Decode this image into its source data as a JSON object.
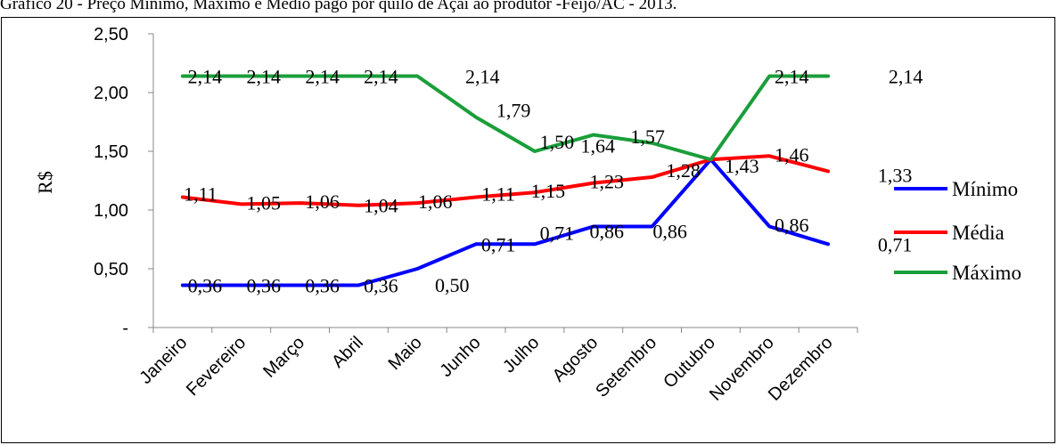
{
  "caption": "Gráfico 20 - Preço Mínimo, Máximo e Médio pago por quilo de Açaí ao produtor -Feijó/AC - 2013.",
  "chart_data": {
    "type": "line",
    "title": "",
    "xlabel": "",
    "ylabel": "R$",
    "ylim": [
      0,
      2.5
    ],
    "y_ticks": [
      "-",
      "0,50",
      "1,00",
      "1,50",
      "2,00",
      "2,50"
    ],
    "y_tick_values": [
      0,
      0.5,
      1.0,
      1.5,
      2.0,
      2.5
    ],
    "grid": false,
    "legend_position": "right",
    "categories": [
      "Janeiro",
      "Fevereiro",
      "Março",
      "Abril",
      "Maio",
      "Junho",
      "Julho",
      "Agosto",
      "Setembro",
      "Outubro",
      "Novembro",
      "Dezembro"
    ],
    "series": [
      {
        "name": "Mínimo",
        "color": "#0000ff",
        "values": [
          0.36,
          0.36,
          0.36,
          0.36,
          0.5,
          0.71,
          0.71,
          0.86,
          0.86,
          1.43,
          0.86,
          0.71
        ],
        "labels": [
          "0,36",
          "0,36",
          "0,36",
          "0,36",
          "0,50",
          "0,71",
          "0,71",
          "0,86",
          "0,86",
          "",
          "0,86",
          "0,71"
        ]
      },
      {
        "name": "Média",
        "color": "#ff0000",
        "values": [
          1.11,
          1.05,
          1.06,
          1.04,
          1.06,
          1.11,
          1.15,
          1.23,
          1.28,
          1.43,
          1.46,
          1.33
        ],
        "labels": [
          "1,11",
          "1,05",
          "1,06",
          "1,04",
          "1,06",
          "1,11",
          "1,15",
          "1,23",
          "1,28",
          "1,43",
          "1,46",
          "1,33"
        ]
      },
      {
        "name": "Máximo",
        "color": "#1a9e3a",
        "values": [
          2.14,
          2.14,
          2.14,
          2.14,
          2.14,
          1.79,
          1.5,
          1.64,
          1.57,
          1.43,
          2.14,
          2.14
        ],
        "labels": [
          "2,14",
          "2,14",
          "2,14",
          "2,14",
          "2,14",
          "1,79",
          "1,50",
          "1,64",
          "1,57",
          "",
          "2,14",
          "2,14"
        ]
      }
    ]
  }
}
